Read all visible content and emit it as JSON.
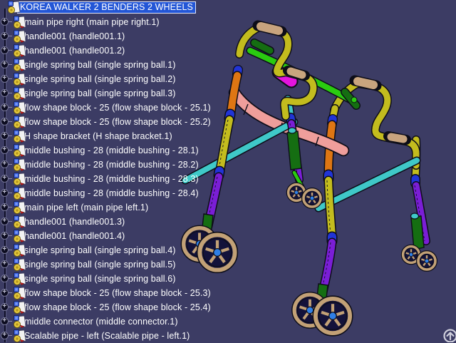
{
  "tree": {
    "items": [
      {
        "label": "KOREA WALKER 2 BENDERS 2 WHEELS",
        "selected": true
      },
      {
        "label": "main pipe right (main pipe right.1)",
        "selected": false
      },
      {
        "label": "handle001 (handle001.1)",
        "selected": false
      },
      {
        "label": "handle001 (handle001.2)",
        "selected": false
      },
      {
        "label": "single spring ball (single spring ball.1)",
        "selected": false
      },
      {
        "label": "single spring ball (single spring ball.2)",
        "selected": false
      },
      {
        "label": "single spring ball (single spring ball.3)",
        "selected": false
      },
      {
        "label": "flow shape block - 25 (flow shape block - 25.1)",
        "selected": false
      },
      {
        "label": "flow shape block - 25 (flow shape block - 25.2)",
        "selected": false
      },
      {
        "label": "H shape bracket (H shape bracket.1)",
        "selected": false
      },
      {
        "label": "middle bushing - 28 (middle bushing - 28.1)",
        "selected": false
      },
      {
        "label": "middle bushing - 28 (middle bushing - 28.2)",
        "selected": false
      },
      {
        "label": "middle bushing - 28 (middle bushing - 28.3)",
        "selected": false
      },
      {
        "label": "middle bushing - 28 (middle bushing - 28.4)",
        "selected": false
      },
      {
        "label": "main pipe left (main pipe left.1)",
        "selected": false
      },
      {
        "label": "handle001 (handle001.3)",
        "selected": false
      },
      {
        "label": "handle001 (handle001.4)",
        "selected": false
      },
      {
        "label": "single spring ball (single spring ball.4)",
        "selected": false
      },
      {
        "label": "single spring ball (single spring ball.5)",
        "selected": false
      },
      {
        "label": "single spring ball (single spring ball.6)",
        "selected": false
      },
      {
        "label": "flow shape block - 25 (flow shape block - 25.3)",
        "selected": false
      },
      {
        "label": "flow shape block - 25 (flow shape block - 25.4)",
        "selected": false
      },
      {
        "label": "middle connector (middle connector.1)",
        "selected": false
      },
      {
        "label": "Scalable pipe - left (Scalable pipe - left.1)",
        "selected": false
      }
    ],
    "icons": {
      "expander": "plus-circle-icon",
      "root": "product-document-icon",
      "part": "part-document-icon"
    }
  },
  "viewport": {
    "overlay_icon": "arrow-up-circle-icon"
  },
  "colors": {
    "background": "#3C3C64",
    "selection": "#2356D6",
    "tree_text": "#FFFFFF",
    "pipe_yellow": "#C3BC1E",
    "grip_tan": "#C8A47E",
    "pipe_orange": "#DE7613",
    "pipe_purple": "#7A1ED6",
    "pipe_cyan": "#3FC8C8",
    "green_bright": "#2ACB10",
    "green_dark": "#156E12",
    "clamp_magenta": "#E414DE",
    "bracket_salmon": "#EF9E9B",
    "ring_blue": "#2134D6",
    "wheel_rim_tan": "#C2A176",
    "wheel_face_navy": "#13123A",
    "hub_blue": "#2F7FE6"
  }
}
